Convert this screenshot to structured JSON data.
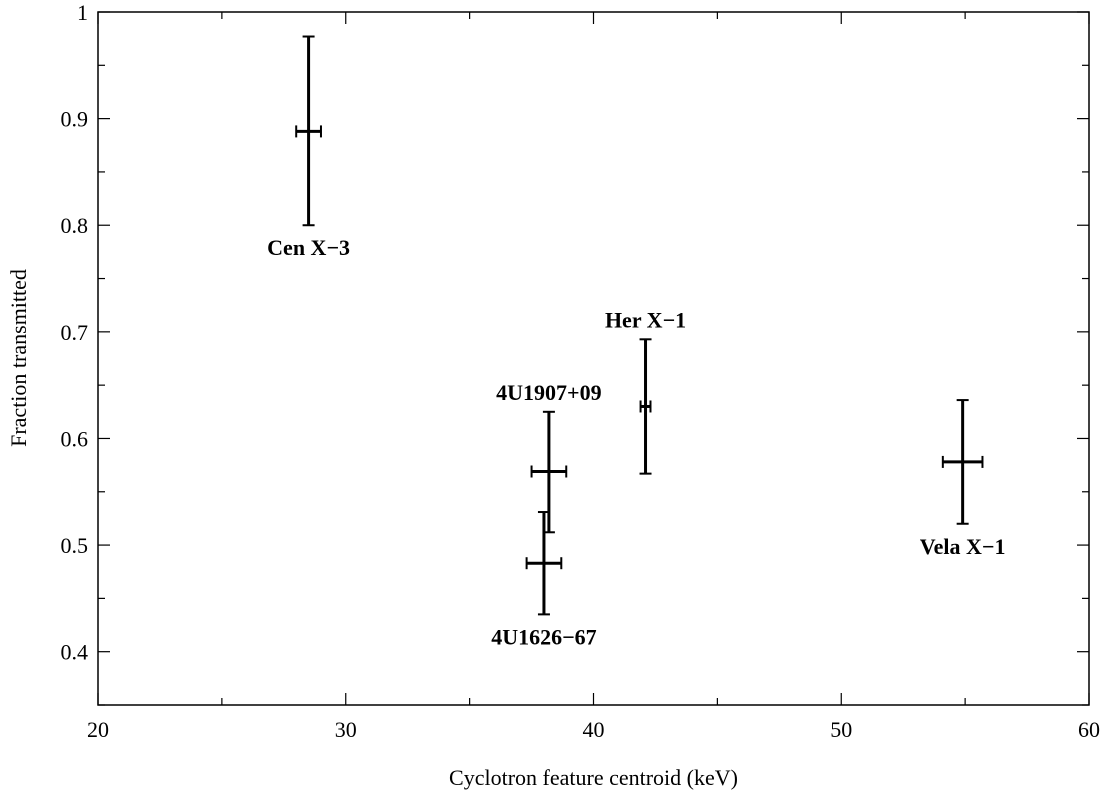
{
  "chart_data": {
    "type": "scatter",
    "title": "",
    "xlabel": "Cyclotron feature centroid (keV)",
    "ylabel": "Fraction transmitted",
    "xlim": [
      20,
      60
    ],
    "ylim": [
      0.35,
      1.0
    ],
    "xticks": [
      20,
      30,
      40,
      50,
      60
    ],
    "yticks": [
      0.4,
      0.5,
      0.6,
      0.7,
      0.8,
      0.9,
      1.0
    ],
    "ytick_labels": [
      "0.4",
      "0.5",
      "0.6",
      "0.7",
      "0.8",
      "0.9",
      "1"
    ],
    "xminor_step": 5,
    "yminor_step": 0.05,
    "grid": false,
    "error_bars": true,
    "points": [
      {
        "label": "Cen X−3",
        "x": 28.5,
        "y": 0.888,
        "xerr": 0.5,
        "yerr_low": 0.088,
        "yerr_high": 0.089,
        "label_pos": "below"
      },
      {
        "label": "4U1907+09",
        "x": 38.2,
        "y": 0.569,
        "xerr": 0.7,
        "yerr_low": 0.057,
        "yerr_high": 0.056,
        "label_pos": "above"
      },
      {
        "label": "4U1626−67",
        "x": 38.0,
        "y": 0.483,
        "xerr": 0.7,
        "yerr_low": 0.048,
        "yerr_high": 0.048,
        "label_pos": "below"
      },
      {
        "label": "Her X−1",
        "x": 42.1,
        "y": 0.63,
        "xerr": 0.2,
        "yerr_low": 0.063,
        "yerr_high": 0.063,
        "label_pos": "above"
      },
      {
        "label": "Vela X−1",
        "x": 54.9,
        "y": 0.578,
        "xerr": 0.8,
        "yerr_low": 0.058,
        "yerr_high": 0.058,
        "label_pos": "below"
      }
    ]
  }
}
